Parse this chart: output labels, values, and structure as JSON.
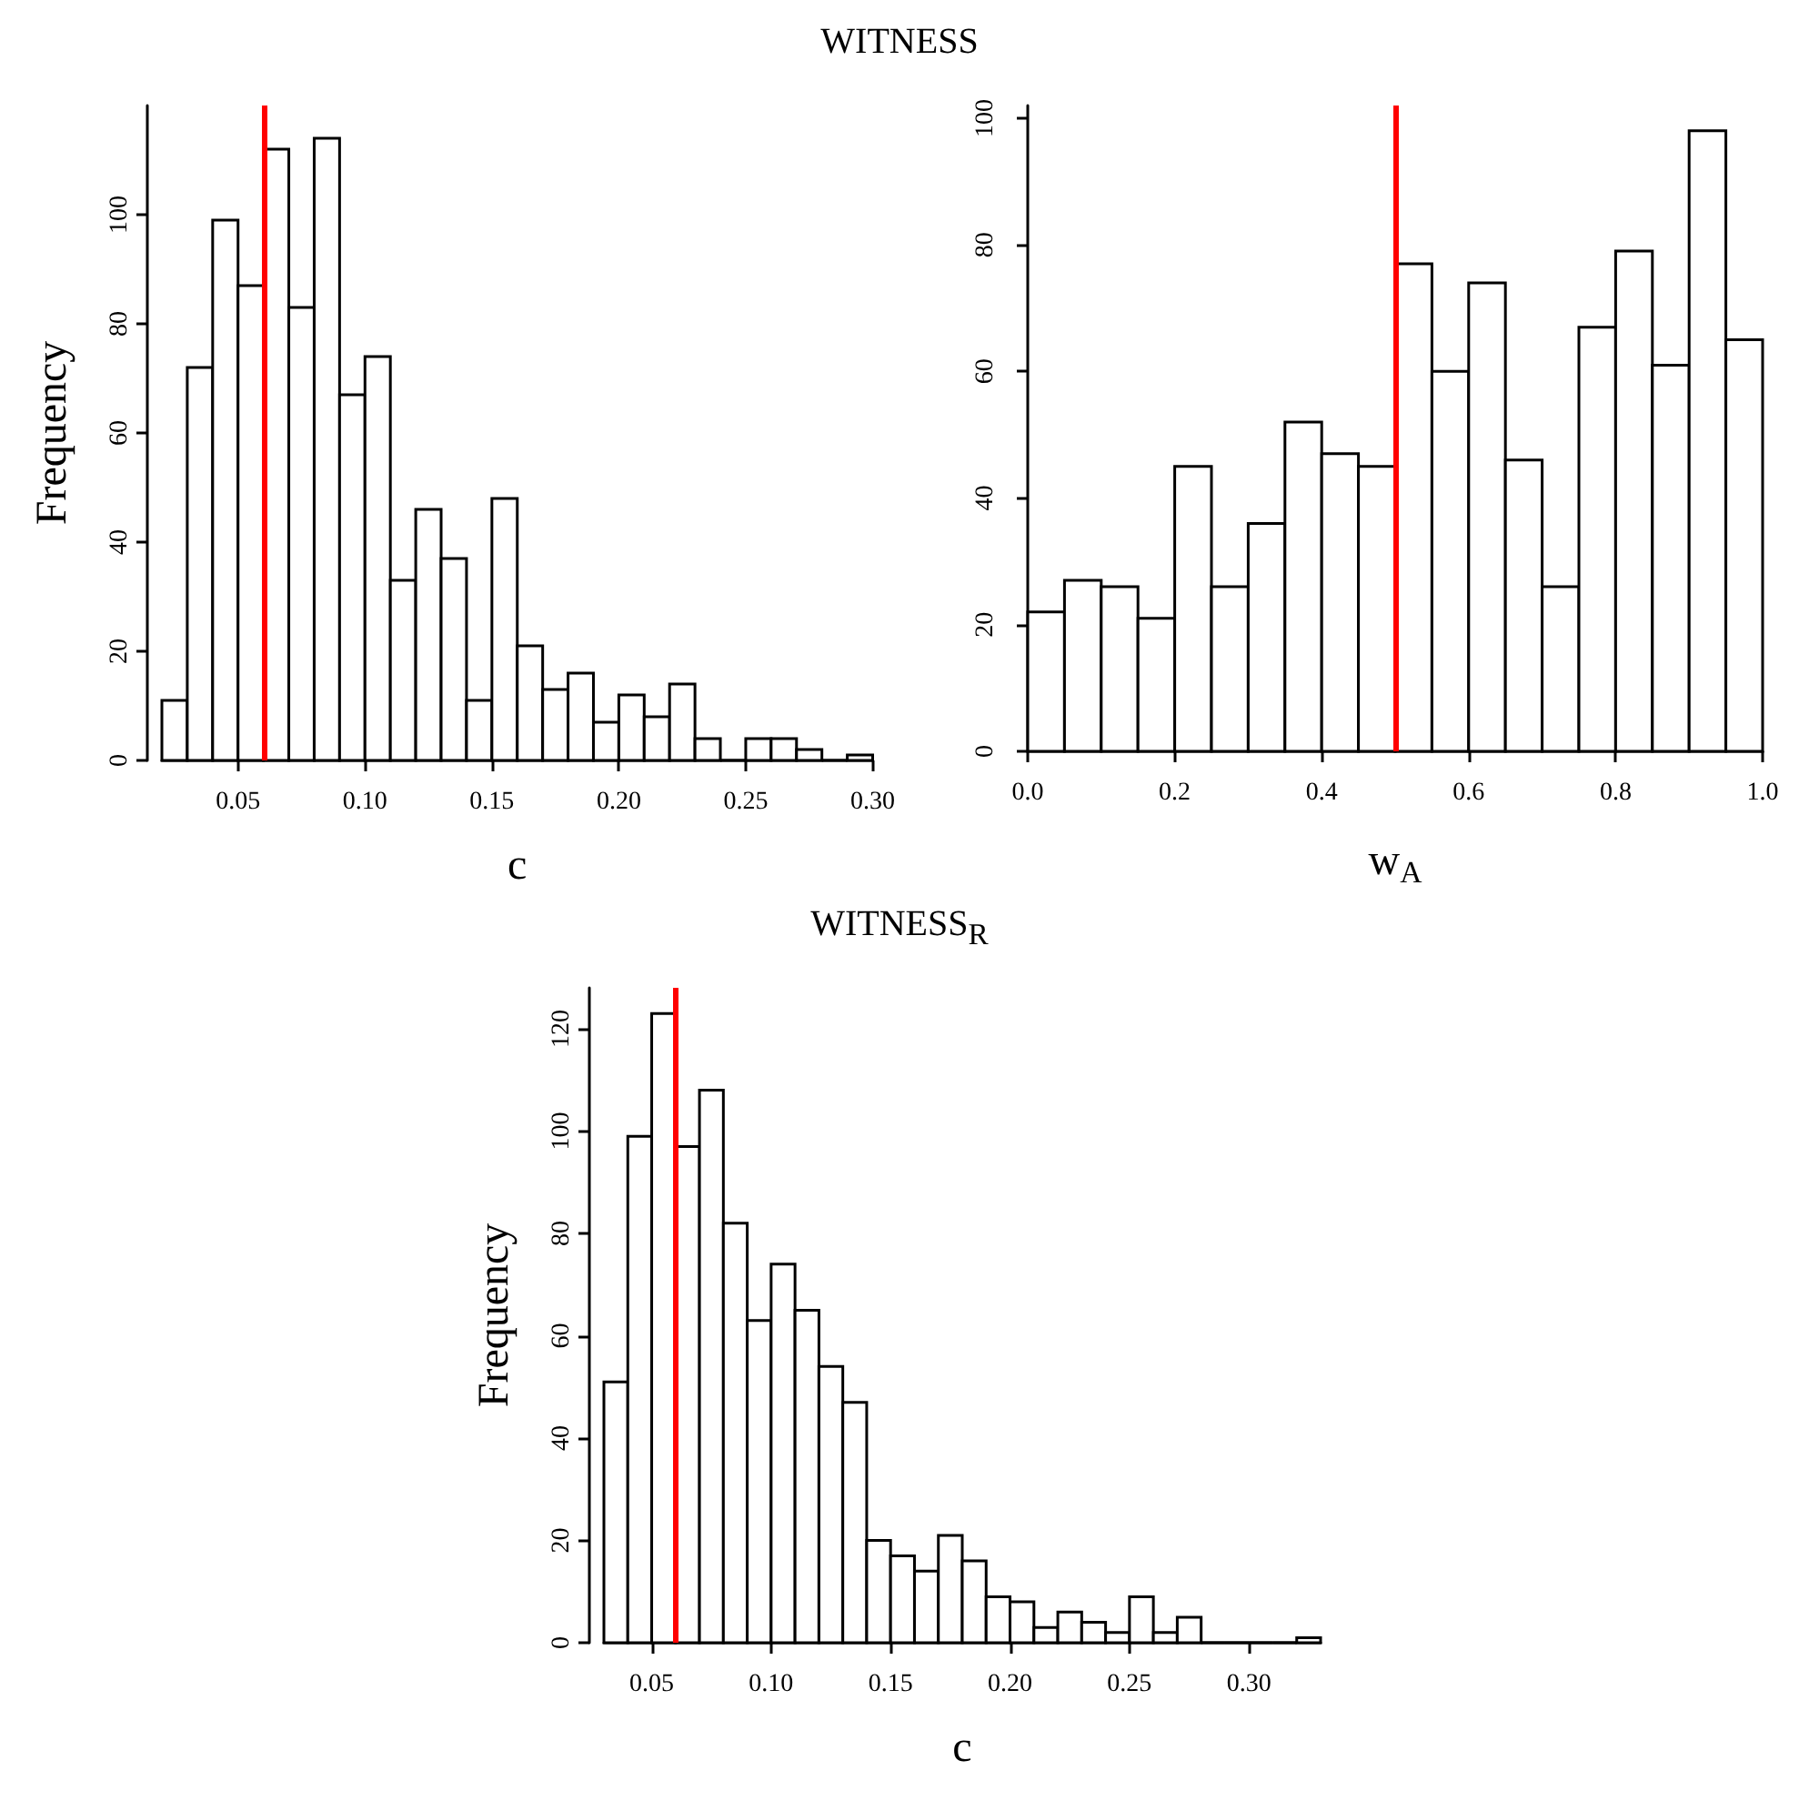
{
  "chart_data": [
    {
      "type": "histogram",
      "title": "WITNESS",
      "xlabel": "c",
      "ylabel": "Frequency",
      "color": "#ffffff",
      "bins": [
        0.02,
        0.03,
        0.04,
        0.05,
        0.06,
        0.07,
        0.08,
        0.09,
        0.1,
        0.11,
        0.12,
        0.13,
        0.14,
        0.15,
        0.16,
        0.17,
        0.18,
        0.19,
        0.2,
        0.21,
        0.22,
        0.23,
        0.24,
        0.25,
        0.26,
        0.27,
        0.28,
        0.29,
        0.3
      ],
      "values": [
        11,
        72,
        99,
        87,
        112,
        83,
        114,
        67,
        74,
        33,
        46,
        37,
        11,
        48,
        21,
        13,
        16,
        7,
        12,
        8,
        14,
        4,
        0,
        4,
        4,
        2,
        0,
        1
      ],
      "xlim": [
        0.02,
        0.3
      ],
      "xticks": [
        0.05,
        {
          "value": 0.1,
          "label": "0.10"
        },
        0.15,
        {
          "value": 0.2,
          "label": "0.20"
        },
        0.25,
        {
          "value": 0.3,
          "label": "0.30"
        }
      ],
      "ylim": [
        0,
        120
      ],
      "yticks": [
        0,
        20,
        40,
        60,
        80,
        100
      ],
      "ref_lines": [
        {
          "axis": "x",
          "value": 0.06,
          "color": "#ff0000"
        }
      ]
    },
    {
      "type": "histogram",
      "xlabel": "w$_{A}$",
      "color": "#ffffff",
      "bins": [
        0,
        0.05,
        0.1,
        0.15,
        0.2,
        0.25,
        0.3,
        0.35,
        0.4,
        0.45,
        0.5,
        0.55,
        0.6,
        0.65,
        0.7,
        0.75,
        0.8,
        0.85,
        0.9,
        0.95,
        1.0
      ],
      "values": [
        22,
        27,
        26,
        21,
        45,
        26,
        36,
        52,
        47,
        45,
        77,
        60,
        74,
        46,
        26,
        67,
        79,
        61,
        98,
        65
      ],
      "xlim": [
        0,
        1
      ],
      "xticks": [
        {
          "value": 0,
          "label": "0.0"
        },
        0.2,
        0.4,
        0.6,
        0.8,
        {
          "value": 1,
          "label": "1.0"
        }
      ],
      "ylim": [
        0,
        102
      ],
      "yticks": [
        0,
        20,
        40,
        60,
        80,
        100
      ],
      "ref_lines": [
        {
          "axis": "x",
          "value": 0.5,
          "color": "#ff0000"
        }
      ]
    },
    {
      "type": "histogram",
      "title": "WITNESS$_{R}$",
      "xlabel": "c",
      "ylabel": "Frequency",
      "color": "#ffffff",
      "bins": [
        0.03,
        0.04,
        0.05,
        0.06,
        0.07,
        0.08,
        0.09,
        0.1,
        0.11,
        0.12,
        0.13,
        0.14,
        0.15,
        0.16,
        0.17,
        0.18,
        0.19,
        0.2,
        0.21,
        0.22,
        0.23,
        0.24,
        0.25,
        0.26,
        0.27,
        0.28,
        0.29,
        0.3,
        0.31,
        0.32,
        0.33
      ],
      "values": [
        51,
        99,
        123,
        97,
        108,
        82,
        63,
        74,
        65,
        54,
        47,
        20,
        17,
        14,
        21,
        16,
        9,
        8,
        3,
        6,
        4,
        2,
        9,
        2,
        5,
        0,
        0,
        0,
        0,
        1
      ],
      "xlim": [
        0.03,
        0.33
      ],
      "xticks": [
        0.05,
        {
          "value": 0.1,
          "label": "0.10"
        },
        0.15,
        {
          "value": 0.2,
          "label": "0.20"
        },
        0.25,
        {
          "value": 0.3,
          "label": "0.30"
        }
      ],
      "ylim": [
        0,
        128
      ],
      "yticks": [
        0,
        20,
        40,
        60,
        80,
        100,
        120
      ],
      "ref_lines": [
        {
          "axis": "x",
          "value": 0.06,
          "color": "#ff0000"
        }
      ]
    }
  ]
}
